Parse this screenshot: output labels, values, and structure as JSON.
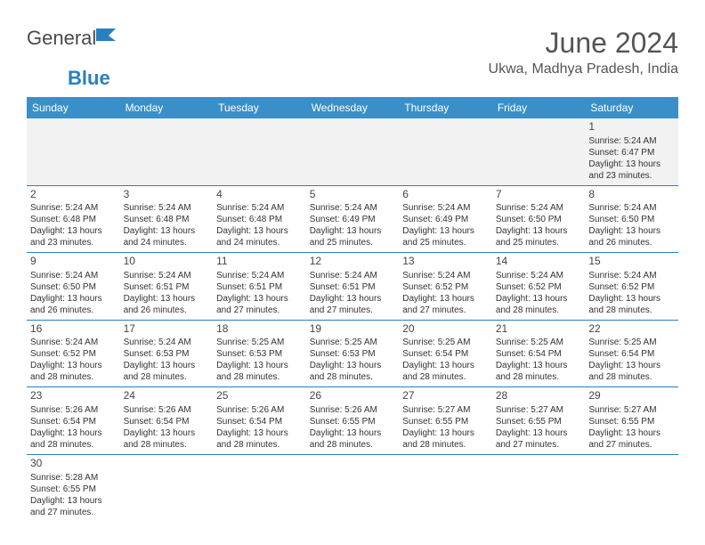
{
  "brand": {
    "part1": "General",
    "part2": "Blue"
  },
  "title": "June 2024",
  "location": "Ukwa, Madhya Pradesh, India",
  "colors": {
    "header_bg": "#3a8fc9",
    "header_text": "#ffffff",
    "border": "#2a7fbf",
    "empty_bg": "#f2f2f2",
    "text": "#333333",
    "title_text": "#555555"
  },
  "day_headers": [
    "Sunday",
    "Monday",
    "Tuesday",
    "Wednesday",
    "Thursday",
    "Friday",
    "Saturday"
  ],
  "weeks": [
    [
      null,
      null,
      null,
      null,
      null,
      null,
      {
        "d": "1",
        "sr": "Sunrise: 5:24 AM",
        "ss": "Sunset: 6:47 PM",
        "dl1": "Daylight: 13 hours",
        "dl2": "and 23 minutes."
      }
    ],
    [
      {
        "d": "2",
        "sr": "Sunrise: 5:24 AM",
        "ss": "Sunset: 6:48 PM",
        "dl1": "Daylight: 13 hours",
        "dl2": "and 23 minutes."
      },
      {
        "d": "3",
        "sr": "Sunrise: 5:24 AM",
        "ss": "Sunset: 6:48 PM",
        "dl1": "Daylight: 13 hours",
        "dl2": "and 24 minutes."
      },
      {
        "d": "4",
        "sr": "Sunrise: 5:24 AM",
        "ss": "Sunset: 6:48 PM",
        "dl1": "Daylight: 13 hours",
        "dl2": "and 24 minutes."
      },
      {
        "d": "5",
        "sr": "Sunrise: 5:24 AM",
        "ss": "Sunset: 6:49 PM",
        "dl1": "Daylight: 13 hours",
        "dl2": "and 25 minutes."
      },
      {
        "d": "6",
        "sr": "Sunrise: 5:24 AM",
        "ss": "Sunset: 6:49 PM",
        "dl1": "Daylight: 13 hours",
        "dl2": "and 25 minutes."
      },
      {
        "d": "7",
        "sr": "Sunrise: 5:24 AM",
        "ss": "Sunset: 6:50 PM",
        "dl1": "Daylight: 13 hours",
        "dl2": "and 25 minutes."
      },
      {
        "d": "8",
        "sr": "Sunrise: 5:24 AM",
        "ss": "Sunset: 6:50 PM",
        "dl1": "Daylight: 13 hours",
        "dl2": "and 26 minutes."
      }
    ],
    [
      {
        "d": "9",
        "sr": "Sunrise: 5:24 AM",
        "ss": "Sunset: 6:50 PM",
        "dl1": "Daylight: 13 hours",
        "dl2": "and 26 minutes."
      },
      {
        "d": "10",
        "sr": "Sunrise: 5:24 AM",
        "ss": "Sunset: 6:51 PM",
        "dl1": "Daylight: 13 hours",
        "dl2": "and 26 minutes."
      },
      {
        "d": "11",
        "sr": "Sunrise: 5:24 AM",
        "ss": "Sunset: 6:51 PM",
        "dl1": "Daylight: 13 hours",
        "dl2": "and 27 minutes."
      },
      {
        "d": "12",
        "sr": "Sunrise: 5:24 AM",
        "ss": "Sunset: 6:51 PM",
        "dl1": "Daylight: 13 hours",
        "dl2": "and 27 minutes."
      },
      {
        "d": "13",
        "sr": "Sunrise: 5:24 AM",
        "ss": "Sunset: 6:52 PM",
        "dl1": "Daylight: 13 hours",
        "dl2": "and 27 minutes."
      },
      {
        "d": "14",
        "sr": "Sunrise: 5:24 AM",
        "ss": "Sunset: 6:52 PM",
        "dl1": "Daylight: 13 hours",
        "dl2": "and 28 minutes."
      },
      {
        "d": "15",
        "sr": "Sunrise: 5:24 AM",
        "ss": "Sunset: 6:52 PM",
        "dl1": "Daylight: 13 hours",
        "dl2": "and 28 minutes."
      }
    ],
    [
      {
        "d": "16",
        "sr": "Sunrise: 5:24 AM",
        "ss": "Sunset: 6:52 PM",
        "dl1": "Daylight: 13 hours",
        "dl2": "and 28 minutes."
      },
      {
        "d": "17",
        "sr": "Sunrise: 5:24 AM",
        "ss": "Sunset: 6:53 PM",
        "dl1": "Daylight: 13 hours",
        "dl2": "and 28 minutes."
      },
      {
        "d": "18",
        "sr": "Sunrise: 5:25 AM",
        "ss": "Sunset: 6:53 PM",
        "dl1": "Daylight: 13 hours",
        "dl2": "and 28 minutes."
      },
      {
        "d": "19",
        "sr": "Sunrise: 5:25 AM",
        "ss": "Sunset: 6:53 PM",
        "dl1": "Daylight: 13 hours",
        "dl2": "and 28 minutes."
      },
      {
        "d": "20",
        "sr": "Sunrise: 5:25 AM",
        "ss": "Sunset: 6:54 PM",
        "dl1": "Daylight: 13 hours",
        "dl2": "and 28 minutes."
      },
      {
        "d": "21",
        "sr": "Sunrise: 5:25 AM",
        "ss": "Sunset: 6:54 PM",
        "dl1": "Daylight: 13 hours",
        "dl2": "and 28 minutes."
      },
      {
        "d": "22",
        "sr": "Sunrise: 5:25 AM",
        "ss": "Sunset: 6:54 PM",
        "dl1": "Daylight: 13 hours",
        "dl2": "and 28 minutes."
      }
    ],
    [
      {
        "d": "23",
        "sr": "Sunrise: 5:26 AM",
        "ss": "Sunset: 6:54 PM",
        "dl1": "Daylight: 13 hours",
        "dl2": "and 28 minutes."
      },
      {
        "d": "24",
        "sr": "Sunrise: 5:26 AM",
        "ss": "Sunset: 6:54 PM",
        "dl1": "Daylight: 13 hours",
        "dl2": "and 28 minutes."
      },
      {
        "d": "25",
        "sr": "Sunrise: 5:26 AM",
        "ss": "Sunset: 6:54 PM",
        "dl1": "Daylight: 13 hours",
        "dl2": "and 28 minutes."
      },
      {
        "d": "26",
        "sr": "Sunrise: 5:26 AM",
        "ss": "Sunset: 6:55 PM",
        "dl1": "Daylight: 13 hours",
        "dl2": "and 28 minutes."
      },
      {
        "d": "27",
        "sr": "Sunrise: 5:27 AM",
        "ss": "Sunset: 6:55 PM",
        "dl1": "Daylight: 13 hours",
        "dl2": "and 28 minutes."
      },
      {
        "d": "28",
        "sr": "Sunrise: 5:27 AM",
        "ss": "Sunset: 6:55 PM",
        "dl1": "Daylight: 13 hours",
        "dl2": "and 27 minutes."
      },
      {
        "d": "29",
        "sr": "Sunrise: 5:27 AM",
        "ss": "Sunset: 6:55 PM",
        "dl1": "Daylight: 13 hours",
        "dl2": "and 27 minutes."
      }
    ],
    [
      {
        "d": "30",
        "sr": "Sunrise: 5:28 AM",
        "ss": "Sunset: 6:55 PM",
        "dl1": "Daylight: 13 hours",
        "dl2": "and 27 minutes."
      },
      null,
      null,
      null,
      null,
      null,
      null
    ]
  ]
}
